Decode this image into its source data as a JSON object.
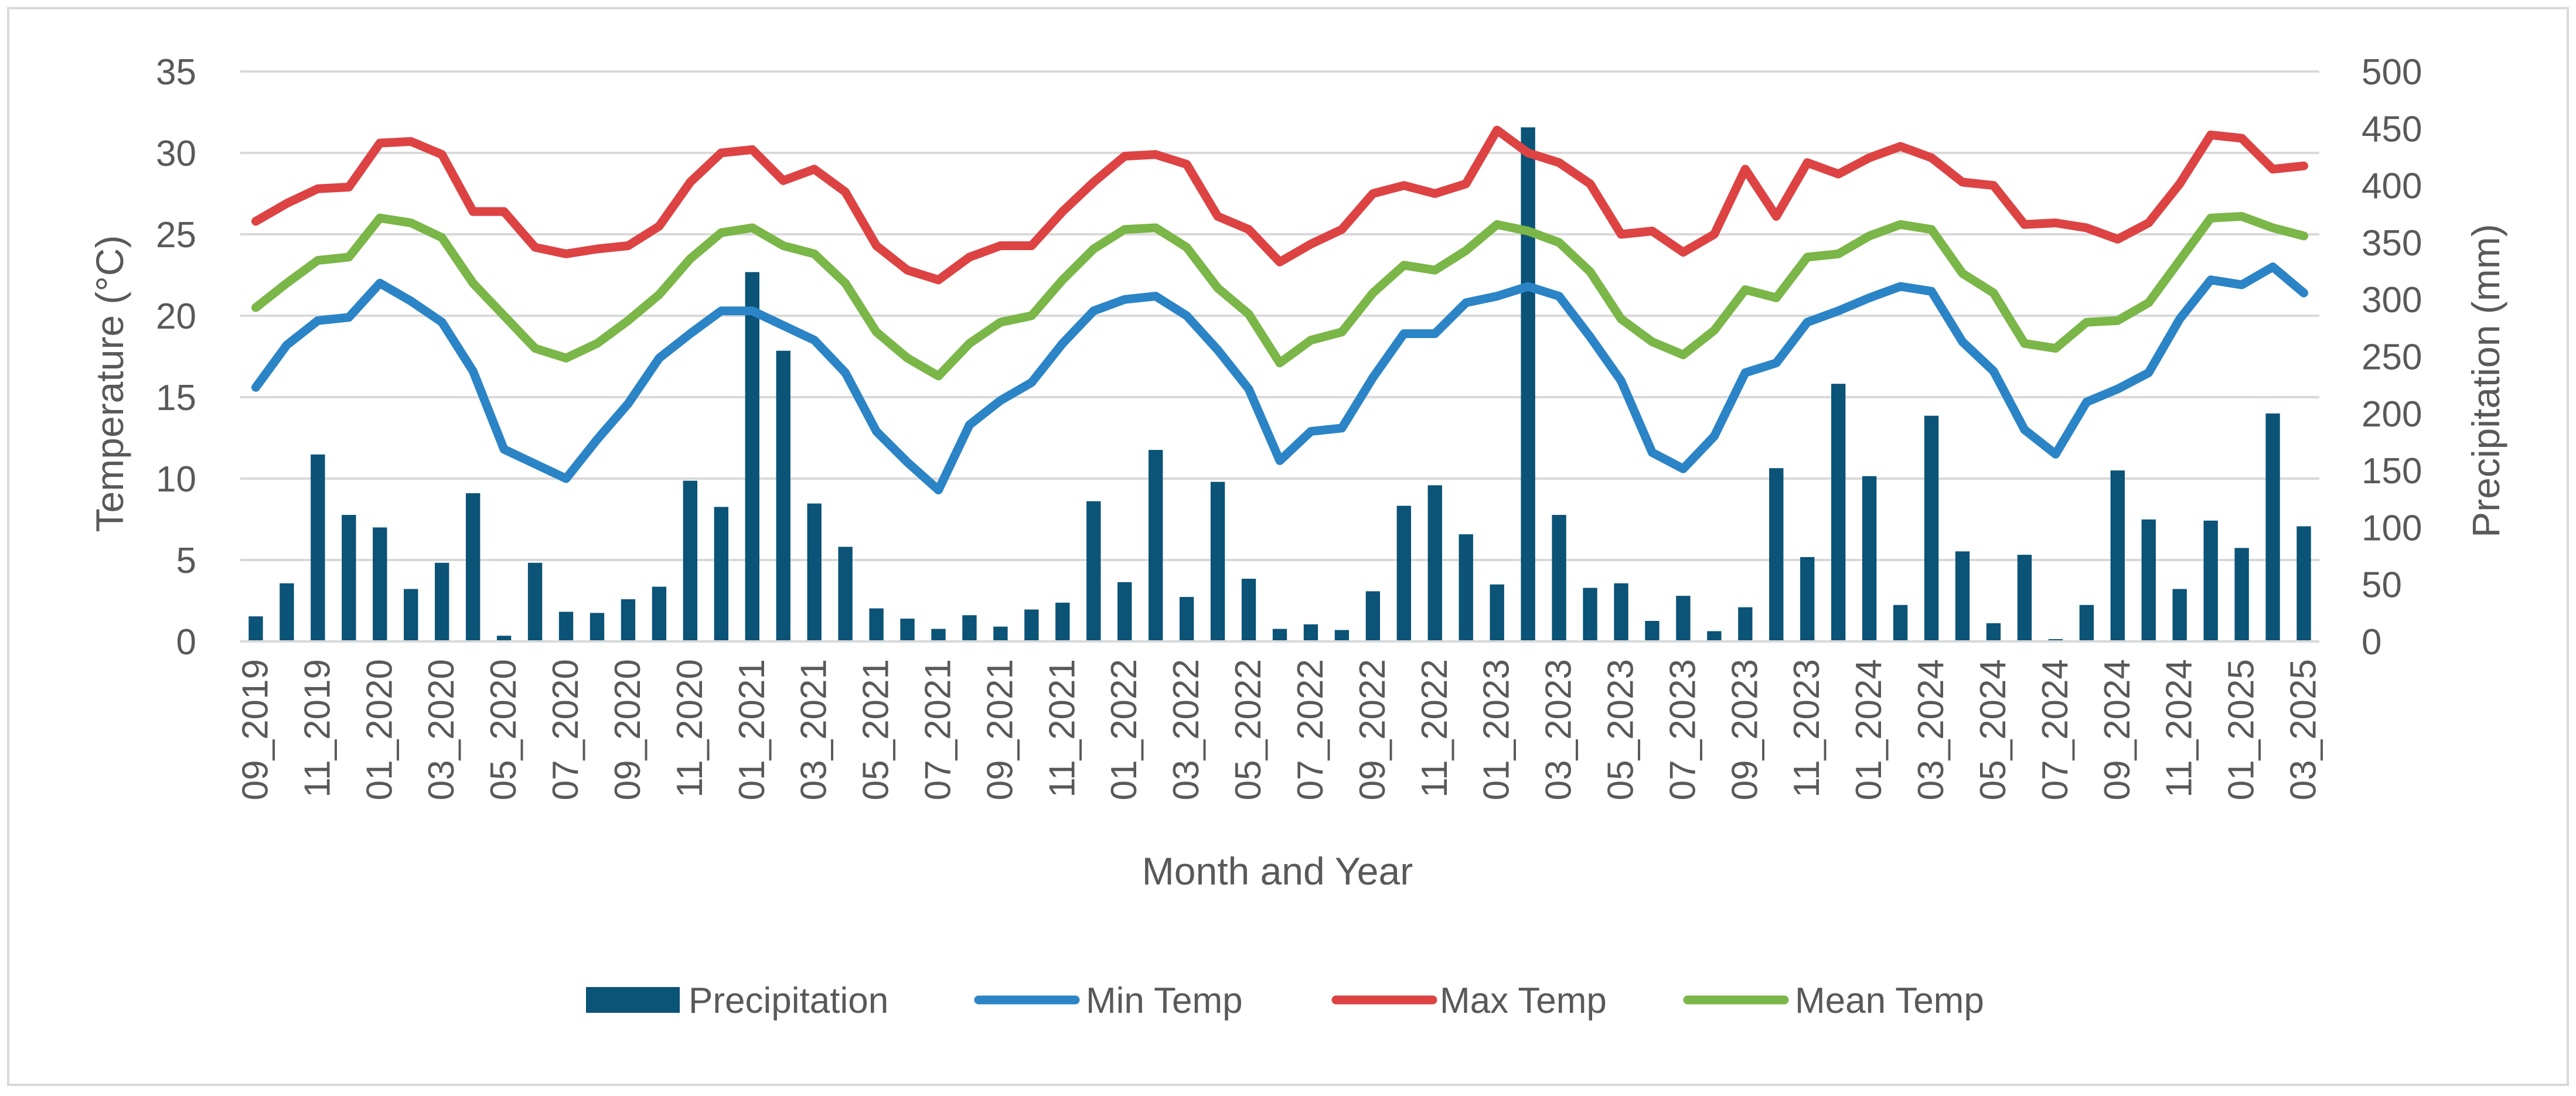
{
  "chart_data": {
    "type": "bar+line",
    "title": "",
    "xlabel": "Month and Year",
    "ylabel_left": "Temperature (°C)",
    "ylabel_right": "Precipitation (mm)",
    "ylim_left": [
      0,
      35
    ],
    "ylim_right": [
      0,
      500
    ],
    "yticks_left": [
      "0",
      "5",
      "10",
      "15",
      "20",
      "25",
      "30",
      "35"
    ],
    "yticks_right": [
      "0",
      "50",
      "100",
      "150",
      "200",
      "250",
      "300",
      "350",
      "400",
      "450",
      "500"
    ],
    "grid": true,
    "legend_position": "bottom",
    "categories": [
      "09_2019",
      "10_2019",
      "11_2019",
      "12_2019",
      "01_2020",
      "02_2020",
      "03_2020",
      "04_2020",
      "05_2020",
      "06_2020",
      "07_2020",
      "08_2020",
      "09_2020",
      "10_2020",
      "11_2020",
      "12_2020",
      "01_2021",
      "02_2021",
      "03_2021",
      "04_2021",
      "05_2021",
      "06_2021",
      "07_2021",
      "08_2021",
      "09_2021",
      "10_2021",
      "11_2021",
      "12_2021",
      "01_2022",
      "02_2022",
      "03_2022",
      "04_2022",
      "05_2022",
      "06_2022",
      "07_2022",
      "08_2022",
      "09_2022",
      "10_2022",
      "11_2022",
      "12_2022",
      "01_2023",
      "02_2023",
      "03_2023",
      "04_2023",
      "05_2023",
      "06_2023",
      "07_2023",
      "08_2023",
      "09_2023",
      "10_2023",
      "11_2023",
      "12_2023",
      "01_2024",
      "02_2024",
      "03_2024",
      "04_2024",
      "05_2024",
      "06_2024",
      "07_2024",
      "08_2024",
      "09_2024",
      "10_2024",
      "11_2024",
      "12_2024",
      "01_2025",
      "02_2025",
      "03_2025"
    ],
    "series": [
      {
        "name": "Precipitation",
        "type": "bar",
        "axis": "right",
        "color": "#0b5377",
        "values": [
          22,
          51,
          164,
          111,
          100,
          46,
          69,
          130,
          5,
          69,
          26,
          25,
          37,
          48,
          141,
          118,
          324,
          255,
          121,
          83,
          29,
          20,
          11,
          23,
          13,
          28,
          34,
          123,
          52,
          168,
          39,
          140,
          55,
          11,
          15,
          10,
          44,
          119,
          137,
          94,
          50,
          451,
          111,
          47,
          51,
          18,
          40,
          9,
          30,
          152,
          74,
          226,
          145,
          32,
          198,
          79,
          16,
          76,
          2,
          32,
          150,
          107,
          46,
          106,
          82,
          200,
          101
        ]
      },
      {
        "name": "Min Temp",
        "type": "line",
        "axis": "left",
        "color": "#2b84c6",
        "values": [
          15.6,
          18.2,
          19.7,
          19.9,
          22.0,
          20.9,
          19.6,
          16.6,
          11.8,
          10.9,
          10.0,
          12.4,
          14.6,
          17.4,
          18.9,
          20.3,
          20.3,
          19.4,
          18.5,
          16.5,
          12.9,
          11.0,
          9.3,
          13.3,
          14.8,
          15.9,
          18.3,
          20.3,
          21.0,
          21.2,
          20.0,
          17.9,
          15.5,
          11.1,
          12.9,
          13.1,
          16.2,
          18.9,
          18.9,
          20.8,
          21.2,
          21.8,
          21.2,
          18.7,
          16.0,
          11.6,
          10.6,
          12.6,
          16.5,
          17.1,
          19.6,
          20.3,
          21.1,
          21.8,
          21.5,
          18.4,
          16.6,
          13.0,
          11.5,
          14.7,
          15.5,
          16.5,
          19.8,
          22.2,
          21.9,
          23.0,
          21.4
        ]
      },
      {
        "name": "Max Temp",
        "type": "line",
        "axis": "left",
        "color": "#dd4343",
        "values": [
          25.8,
          26.9,
          27.8,
          27.9,
          30.6,
          30.7,
          29.9,
          26.4,
          26.4,
          24.2,
          23.8,
          24.1,
          24.3,
          25.5,
          28.2,
          30.0,
          30.2,
          28.3,
          29.0,
          27.6,
          24.3,
          22.8,
          22.2,
          23.6,
          24.3,
          24.3,
          26.4,
          28.2,
          29.8,
          29.9,
          29.3,
          26.1,
          25.3,
          23.3,
          24.4,
          25.3,
          27.5,
          28.0,
          27.5,
          28.1,
          31.4,
          30.0,
          29.4,
          28.1,
          25.0,
          25.2,
          23.9,
          25.0,
          29.0,
          26.1,
          29.4,
          28.7,
          29.7,
          30.4,
          29.7,
          28.2,
          28.0,
          25.6,
          25.7,
          25.4,
          24.7,
          25.7,
          28.1,
          31.1,
          30.9,
          29.0,
          29.2
        ]
      },
      {
        "name": "Mean Temp",
        "type": "line",
        "axis": "left",
        "color": "#7ab648",
        "values": [
          20.5,
          22.0,
          23.4,
          23.6,
          26.0,
          25.7,
          24.8,
          22.0,
          20.0,
          18.0,
          17.4,
          18.3,
          19.7,
          21.3,
          23.5,
          25.1,
          25.4,
          24.3,
          23.8,
          22.0,
          19.0,
          17.4,
          16.3,
          18.3,
          19.6,
          20.0,
          22.2,
          24.1,
          25.3,
          25.4,
          24.2,
          21.7,
          20.1,
          17.1,
          18.5,
          19.0,
          21.4,
          23.1,
          22.8,
          24.0,
          25.6,
          25.2,
          24.5,
          22.7,
          19.8,
          18.4,
          17.6,
          19.1,
          21.6,
          21.1,
          23.6,
          23.8,
          24.9,
          25.6,
          25.3,
          22.6,
          21.4,
          18.3,
          18.0,
          19.6,
          19.7,
          20.8,
          23.4,
          26.0,
          26.1,
          25.4,
          24.9
        ]
      }
    ]
  }
}
